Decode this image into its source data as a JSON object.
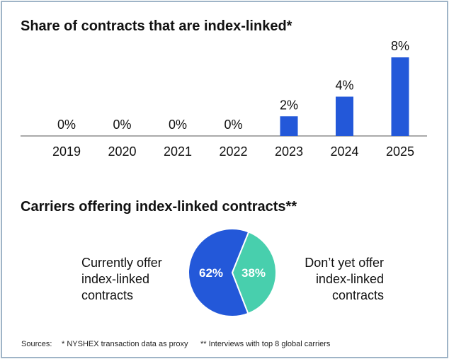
{
  "chart_data": [
    {
      "type": "bar",
      "title": "Share of contracts that are index-linked*",
      "categories": [
        "2019",
        "2020",
        "2021",
        "2022",
        "2023",
        "2024",
        "2025"
      ],
      "values": [
        0,
        0,
        0,
        0,
        2,
        4,
        8
      ],
      "data_labels": [
        "0%",
        "0%",
        "0%",
        "0%",
        "2%",
        "4%",
        "8%"
      ],
      "unit": "%",
      "ylim": [
        0,
        8
      ],
      "grid": false,
      "color": "#2358d9"
    },
    {
      "type": "pie",
      "title": "Carriers offering index-linked contracts**",
      "slices": [
        {
          "label": "Currently offer index-linked contracts",
          "value": 62,
          "data_label": "62%",
          "color": "#2358d9"
        },
        {
          "label": "Don’t yet offer index-linked contracts",
          "value": 38,
          "data_label": "38%",
          "color": "#48cfad"
        }
      ]
    }
  ],
  "sources": {
    "label": "Sources:",
    "note1": "* NYSHEX transaction data as proxy",
    "note2": "** Interviews with top 8 global carriers"
  }
}
